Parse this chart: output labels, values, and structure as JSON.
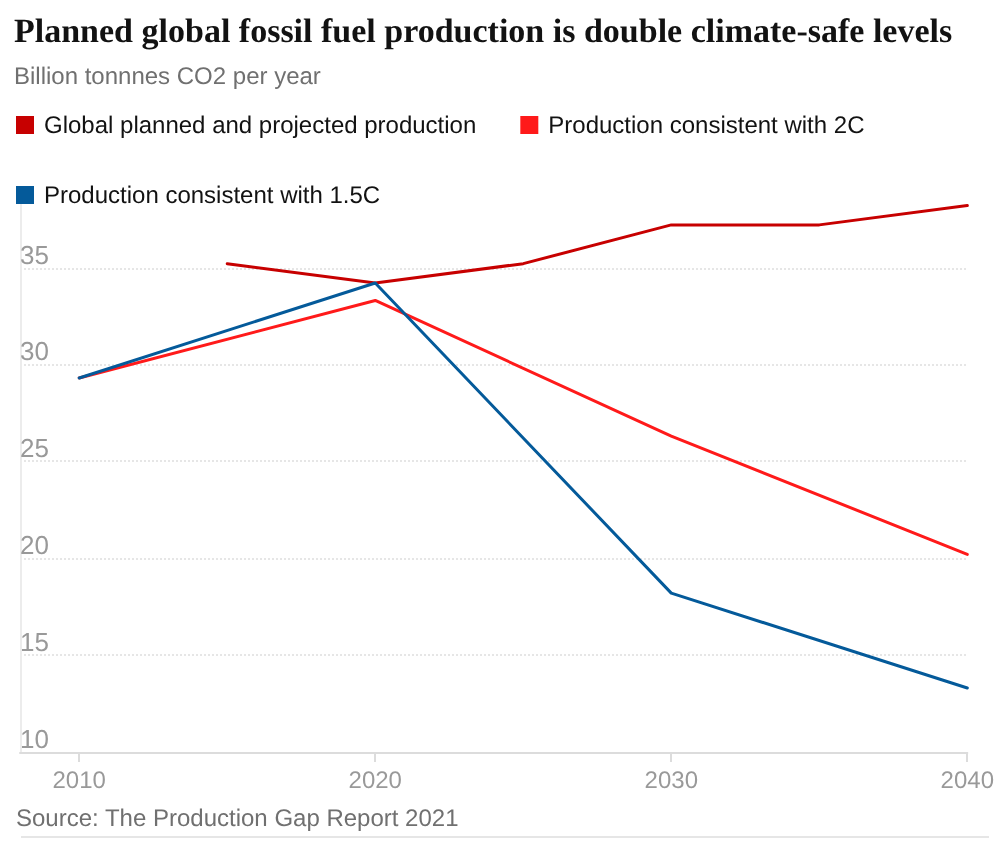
{
  "chart_data": {
    "type": "line",
    "title": "Planned global fossil fuel production is double climate-safe levels",
    "subtitle": "Billion tonnnes CO2 per year",
    "annotations": [
      "Source: The Production Gap Report 2021"
    ],
    "x": [
      2010,
      2015,
      2020,
      2025,
      2030,
      2035,
      2040
    ],
    "series": [
      {
        "name": "Global planned and projected production",
        "color": "#c70000",
        "values": [
          null,
          35.2,
          34.2,
          35.2,
          37.2,
          37.2,
          38.2
        ]
      },
      {
        "name": "Production consistent with 2C",
        "color": "#ff1a1a",
        "values": [
          29.3,
          null,
          33.3,
          null,
          26.3,
          null,
          20.2
        ]
      },
      {
        "name": "Production consistent with 1.5C",
        "color": "#045a9a",
        "values": [
          29.3,
          null,
          34.2,
          null,
          18.2,
          null,
          13.3
        ]
      }
    ],
    "xlim": [
      2008,
      2040
    ],
    "xticks": [
      2010,
      2020,
      2030,
      2040
    ],
    "ylim": [
      10,
      39
    ],
    "yticks": [
      10,
      15,
      20,
      25,
      30,
      35
    ],
    "grid": "y",
    "legend": "top left",
    "marker": "none",
    "line_style": "solid"
  }
}
